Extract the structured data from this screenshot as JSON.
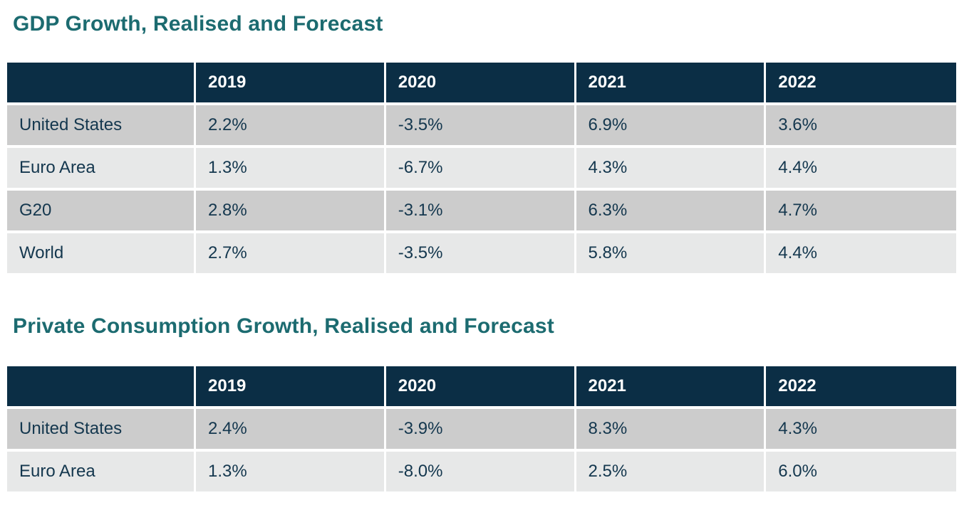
{
  "colors": {
    "title": "#1c6b70",
    "header_bg": "#0b2e45",
    "header_text": "#ffffff",
    "row_odd_bg": "#cccccc",
    "row_even_bg": "#e7e8e8",
    "cell_text": "#14374e",
    "divider": "#ffffff"
  },
  "tables": [
    {
      "title": "GDP Growth, Realised and Forecast",
      "columns": [
        "",
        "2019",
        "2020",
        "2021",
        "2022"
      ],
      "rows": [
        {
          "label": "United States",
          "values": [
            "2.2%",
            "-3.5%",
            "6.9%",
            "3.6%"
          ]
        },
        {
          "label": "Euro Area",
          "values": [
            "1.3%",
            "-6.7%",
            "4.3%",
            "4.4%"
          ]
        },
        {
          "label": "G20",
          "values": [
            "2.8%",
            "-3.1%",
            "6.3%",
            "4.7%"
          ]
        },
        {
          "label": "World",
          "values": [
            "2.7%",
            "-3.5%",
            "5.8%",
            "4.4%"
          ]
        }
      ]
    },
    {
      "title": "Private Consumption Growth, Realised and Forecast",
      "columns": [
        "",
        "2019",
        "2020",
        "2021",
        "2022"
      ],
      "rows": [
        {
          "label": "United States",
          "values": [
            "2.4%",
            "-3.9%",
            "8.3%",
            "4.3%"
          ]
        },
        {
          "label": "Euro Area",
          "values": [
            "1.3%",
            "-8.0%",
            "2.5%",
            "6.0%"
          ]
        }
      ]
    }
  ]
}
